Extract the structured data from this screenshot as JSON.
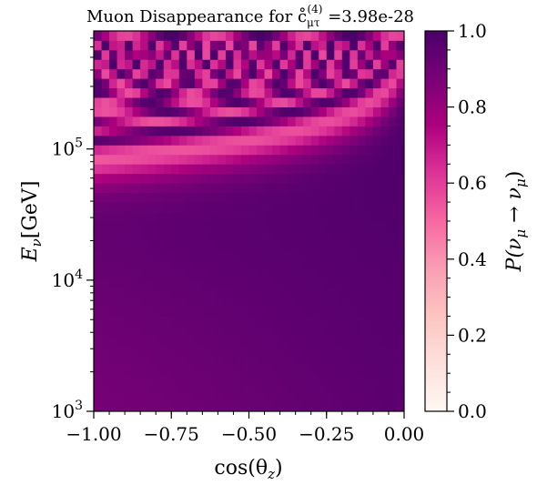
{
  "chart_data": {
    "type": "heatmap",
    "title": "Muon Disappearance for c̊",
    "title_sub": "μτ",
    "title_sup": "(4)",
    "title_value": " =3.98e-28",
    "xlabel": "cos(θ",
    "xlabel_sub": "z",
    "xlabel_close": ")",
    "ylabel": "E",
    "ylabel_sub": "ν",
    "ylabel_unit": "[GeV]",
    "colorbar_label": "P(ν",
    "colorbar_label_sub1": "μ",
    "colorbar_label_arrow": " → ν",
    "colorbar_label_sub2": "μ",
    "colorbar_label_close": ")",
    "xlim": [
      -1.0,
      0.0
    ],
    "ylim_log10": [
      3.0,
      5.9
    ],
    "x_ticks": [
      "−1.00",
      "−0.75",
      "−0.50",
      "−0.25",
      "0.00"
    ],
    "x_tick_values": [
      -1.0,
      -0.75,
      -0.5,
      -0.25,
      0.0
    ],
    "y_ticks": [
      {
        "base": "10",
        "exp": "3",
        "log": 3
      },
      {
        "base": "10",
        "exp": "4",
        "log": 4
      },
      {
        "base": "10",
        "exp": "5",
        "log": 5
      }
    ],
    "colorbar_ticks": [
      "0.0",
      "0.2",
      "0.4",
      "0.6",
      "0.8",
      "1.0"
    ],
    "colorbar_tick_values": [
      0.0,
      0.2,
      0.4,
      0.6,
      0.8,
      1.0
    ],
    "colormap": "RdPu",
    "colormap_stops": [
      "#fff7f3",
      "#fde0dd",
      "#fcc5c0",
      "#fa9fb5",
      "#f768a1",
      "#dd3497",
      "#ae017e",
      "#7a0177",
      "#49006a"
    ],
    "vlim": [
      0.0,
      1.0
    ],
    "grid": false,
    "nx": 40,
    "ny": 40
  }
}
